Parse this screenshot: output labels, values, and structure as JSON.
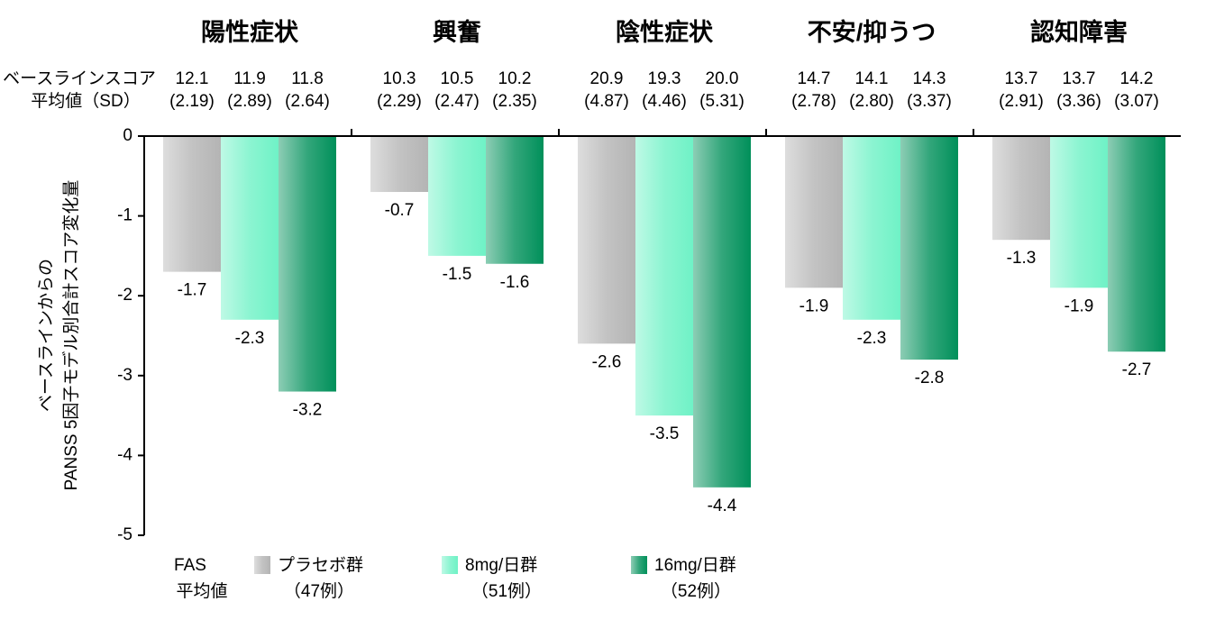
{
  "chart_data": {
    "type": "bar",
    "categories": [
      "陽性症状",
      "興奮",
      "陰性症状",
      "不安/抑うつ",
      "認知障害"
    ],
    "baseline_label": [
      "ベースラインスコア",
      "平均値（SD）"
    ],
    "ylabel": [
      "ベースラインからの",
      "PANSS 5因子モデル別合計スコア変化量"
    ],
    "ylim": [
      -5,
      0
    ],
    "yticks": [
      0,
      -1,
      -2,
      -3,
      -4,
      -5
    ],
    "legend_title": [
      "FAS",
      "平均値"
    ],
    "series": [
      {
        "name": "プラセボ群",
        "count_label": "（47例）",
        "color": "#b4b4b4",
        "values": [
          -1.7,
          -0.7,
          -2.6,
          -1.9,
          -1.3
        ],
        "baseline_means": [
          12.1,
          10.3,
          20.9,
          14.7,
          13.7
        ],
        "baseline_sds": [
          {
            "value": 2.19,
            "label": "(2.19)"
          },
          {
            "value": 2.29,
            "label": "(2.29)"
          },
          {
            "value": 4.87,
            "label": "(4.87)"
          },
          {
            "value": 2.78,
            "label": "(2.78)"
          },
          {
            "value": 2.91,
            "label": "(2.91)"
          }
        ]
      },
      {
        "name": "8mg/日群",
        "count_label": "（51例）",
        "color": "#6ff2c6",
        "values": [
          -2.3,
          -1.5,
          -3.5,
          -2.3,
          -1.9
        ],
        "baseline_means": [
          11.9,
          10.5,
          19.3,
          14.1,
          13.7
        ],
        "baseline_sds": [
          {
            "value": 2.89,
            "label": "(2.89)"
          },
          {
            "value": 2.47,
            "label": "(2.47)"
          },
          {
            "value": 4.46,
            "label": "(4.46)"
          },
          {
            "value": 2.8,
            "label": "(2.80)"
          },
          {
            "value": 3.36,
            "label": "(3.36)"
          }
        ]
      },
      {
        "name": "16mg/日群",
        "count_label": "（52例）",
        "color": "#00905a",
        "values": [
          -3.2,
          -1.6,
          -4.4,
          -2.8,
          -2.7
        ],
        "baseline_means": [
          11.8,
          10.2,
          {
            "value": 20.0,
            "label": "20.0"
          },
          14.3,
          14.2
        ],
        "baseline_sds": [
          {
            "value": 2.64,
            "label": "(2.64)"
          },
          {
            "value": 2.35,
            "label": "(2.35)"
          },
          {
            "value": 5.31,
            "label": "(5.31)"
          },
          {
            "value": 3.37,
            "label": "(3.37)"
          },
          {
            "value": 3.07,
            "label": "(3.07)"
          }
        ]
      }
    ]
  }
}
